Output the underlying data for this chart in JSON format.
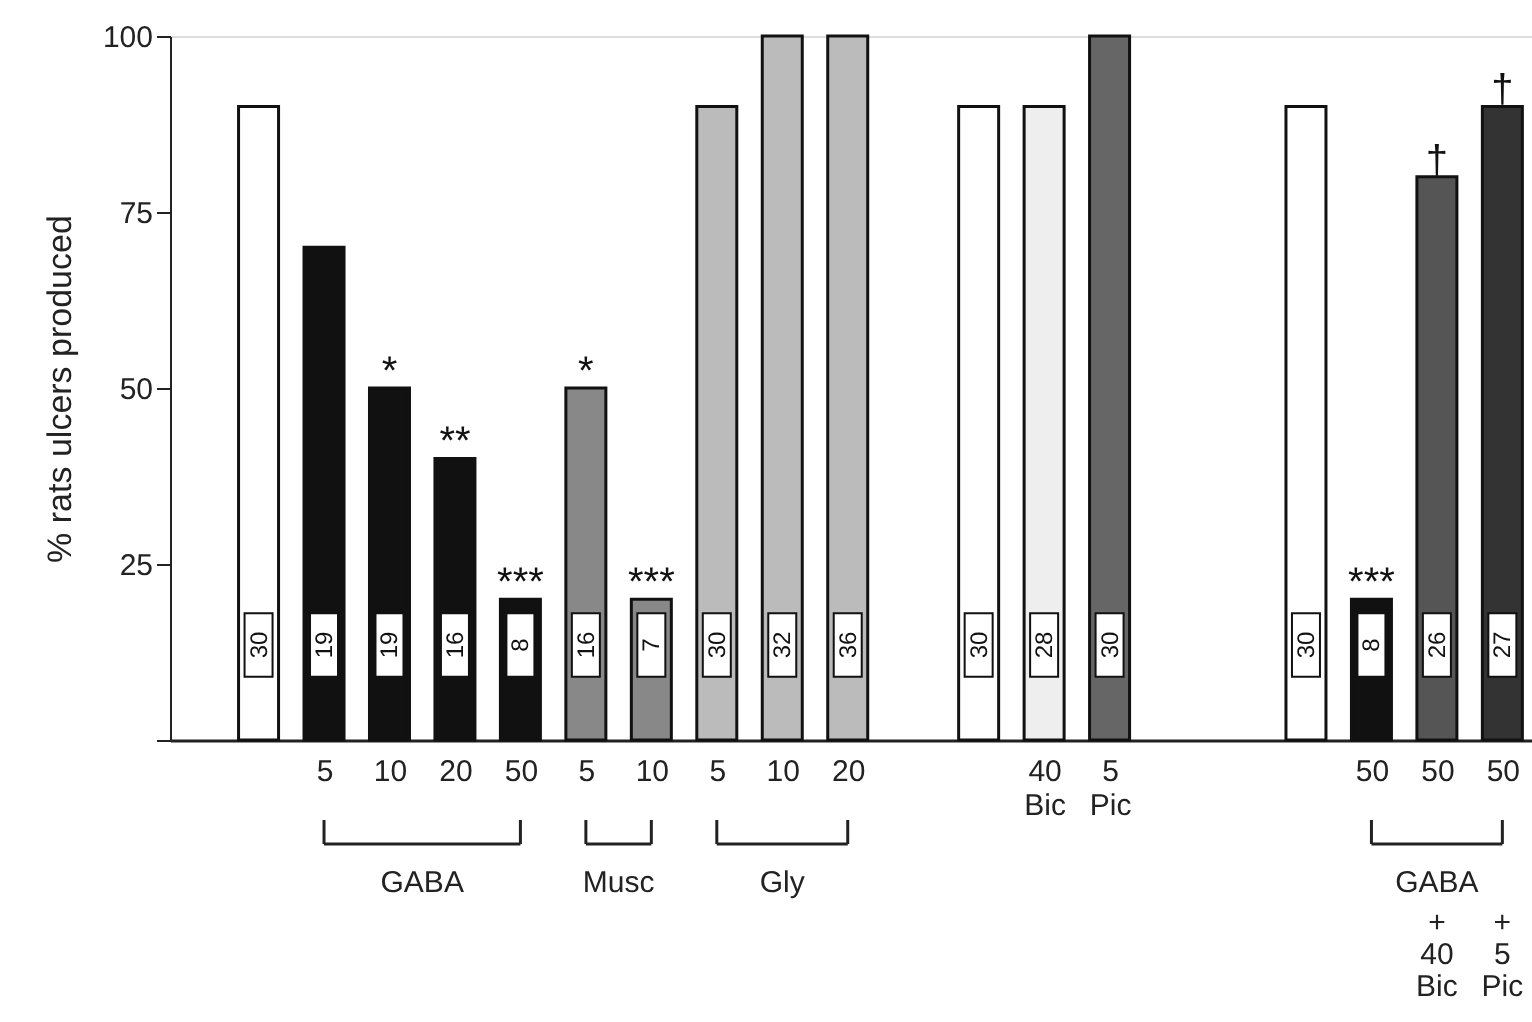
{
  "chart_data": {
    "type": "bar",
    "ylabel": "% rats ulcers produced",
    "categories": [
      null,
      "5",
      "10",
      "20",
      "50",
      "5",
      "10",
      "5",
      "10",
      "20",
      null,
      null,
      "40\nBic",
      "5\nPic",
      null,
      null,
      null,
      "50",
      "50",
      "50"
    ],
    "values": [
      90,
      70,
      50,
      40,
      20,
      50,
      20,
      90,
      100,
      100,
      null,
      90,
      90,
      100,
      null,
      null,
      90,
      20,
      80,
      90
    ],
    "colors": [
      "#ffffff",
      "#111111",
      "#111111",
      "#111111",
      "#111111",
      "#888888",
      "#888888",
      "#bbbbbb",
      "#bbbbbb",
      "#bbbbbb",
      null,
      "#ffffff",
      "#eeeeee",
      "#666666",
      null,
      null,
      "#ffffff",
      "#111111",
      "#555555",
      "#333333"
    ],
    "ylim": [
      0,
      100
    ],
    "yticks": [
      {
        "value": 0,
        "label": null
      },
      25,
      50,
      75,
      100
    ],
    "grid": false,
    "annotations": [
      "30",
      "19",
      "19",
      "16",
      "8",
      "16",
      "7",
      "30",
      "32",
      "36",
      "30",
      "28",
      "30",
      "30",
      "8",
      "26",
      "27",
      "*",
      "**",
      "***",
      "*",
      "***",
      "***",
      "†",
      "†",
      "GABA",
      "Musc",
      "Gly",
      "GABA",
      "+\n40\nBic",
      "+\n5\nPic"
    ]
  }
}
